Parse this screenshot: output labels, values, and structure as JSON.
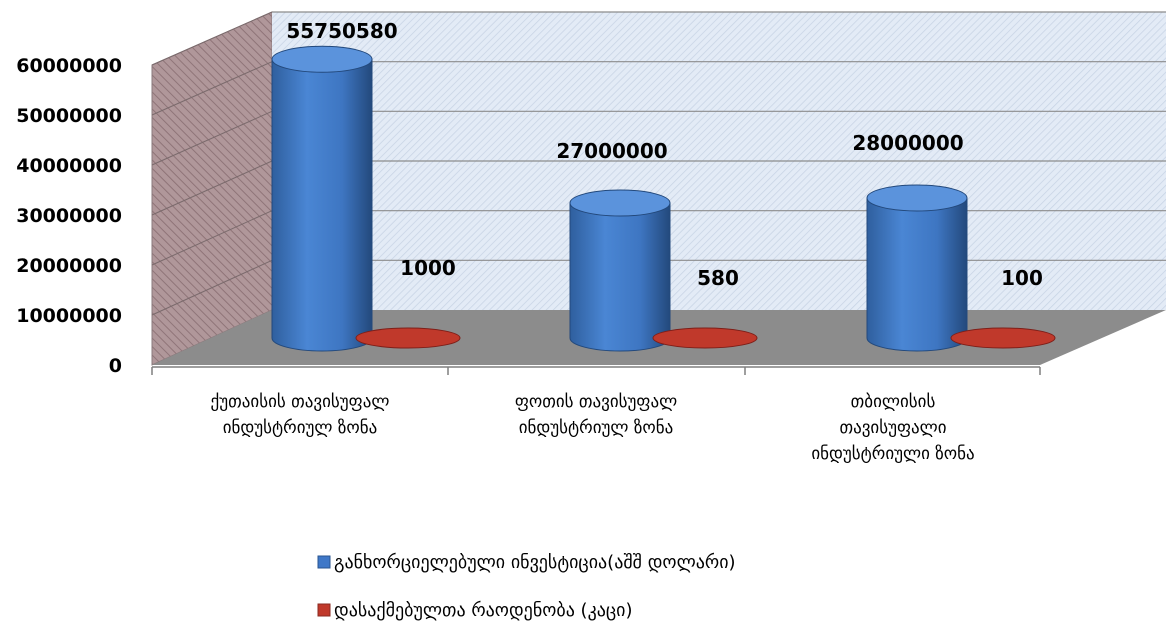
{
  "chart_data": {
    "type": "bar",
    "categories": [
      [
        "ქუთაისის თავისუფალ",
        "ინდუსტრიულ ზონა"
      ],
      [
        "ფოთის თავისუფალ",
        "ინდუსტრიულ ზონა"
      ],
      [
        "თბილისის",
        "თავისუფალი",
        "ინდუსტრიული ზონა"
      ]
    ],
    "series": [
      {
        "name": "განხორციელებული ინვესტიცია(აშშ დოლარი)",
        "values": [
          55750580,
          27000000,
          28000000
        ],
        "color": "#3f78c8"
      },
      {
        "name": "დასაქმებულთა რაოდენობა (კაცი)",
        "values": [
          1000,
          580,
          100
        ],
        "color": "#c0392b"
      }
    ],
    "y_ticks": [
      "0",
      "10000000",
      "20000000",
      "30000000",
      "40000000",
      "50000000",
      "60000000"
    ],
    "ylim": [
      0,
      60000000
    ],
    "grid": true,
    "legend_position": "bottom",
    "colors": {
      "back_wall": "#dbe5f1",
      "side_wall": "#a4888c",
      "floor": "#8c8c8c"
    }
  }
}
